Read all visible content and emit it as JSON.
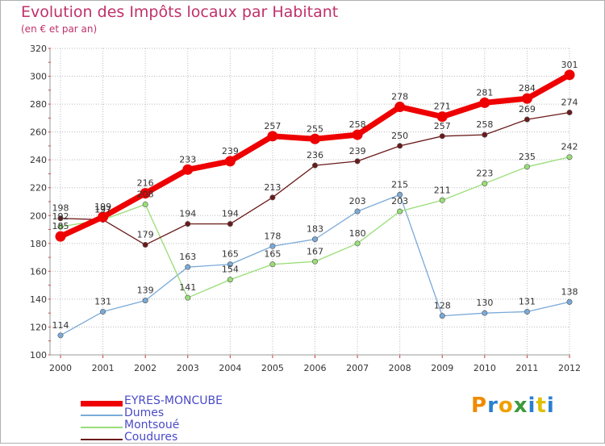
{
  "title": "Evolution des Impôts locaux par Habitant",
  "subtitle": "(en € et par an)",
  "logo_text": "Proxiti",
  "colors": {
    "title": "#c0306a",
    "grid": "#bbbbbb",
    "legend_text": "#4a4ac8"
  },
  "chart_data": {
    "type": "line",
    "x": [
      "2000",
      "2001",
      "2002",
      "2003",
      "2004",
      "2005",
      "2006",
      "2007",
      "2008",
      "2009",
      "2010",
      "2011",
      "2012"
    ],
    "ylim": [
      100,
      320
    ],
    "yticks": [
      100,
      120,
      140,
      160,
      180,
      200,
      220,
      240,
      260,
      280,
      300,
      320
    ],
    "grid": true,
    "legend_position": "bottom-left",
    "series": [
      {
        "name": "EYRES-MONCUBE",
        "color": "#ee0000",
        "values": [
          185,
          199,
          216,
          233,
          239,
          257,
          255,
          258,
          278,
          271,
          281,
          284,
          301
        ],
        "labels": [
          "185",
          "199",
          "216",
          "233",
          "239",
          "257",
          "255",
          "258",
          "278",
          "271",
          "281",
          "284",
          "301"
        ]
      },
      {
        "name": "Dumes",
        "color": "#7aaad8",
        "values": [
          114,
          131,
          139,
          163,
          165,
          178,
          183,
          203,
          215,
          128,
          130,
          131,
          138
        ],
        "labels": [
          "114",
          "131",
          "139",
          "163",
          "165",
          "178",
          "183",
          "203",
          "215",
          "128",
          "130",
          "131",
          "138"
        ]
      },
      {
        "name": "Montsoué",
        "color": "#99dd77",
        "values": [
          192,
          197,
          208,
          141,
          154,
          165,
          167,
          180,
          203,
          211,
          223,
          235,
          242
        ],
        "labels": [
          "192",
          "197",
          "208",
          "141",
          "154",
          "165",
          "167",
          "180",
          "203",
          "211",
          "223",
          "235",
          "242"
        ]
      },
      {
        "name": "Coudures",
        "color": "#6b1a1a",
        "values": [
          198,
          197,
          179,
          194,
          194,
          213,
          236,
          239,
          250,
          257,
          258,
          269,
          274
        ],
        "labels": [
          "198",
          "197",
          "179",
          "194",
          "194",
          "213",
          "236",
          "239",
          "250",
          "257",
          "258",
          "269",
          "274"
        ]
      }
    ]
  }
}
